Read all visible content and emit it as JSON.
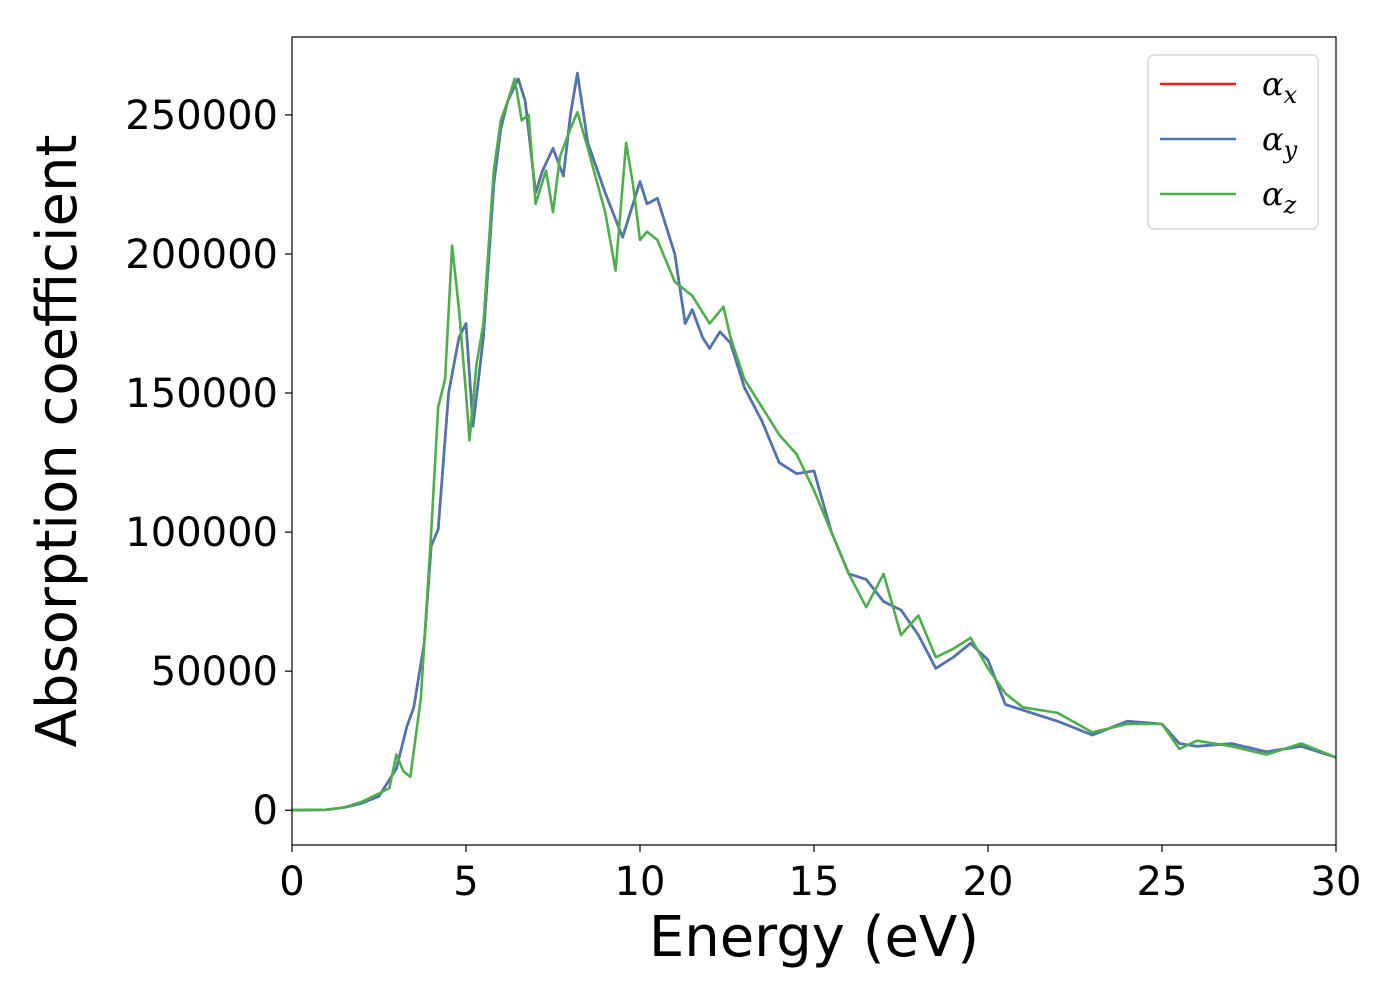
{
  "chart_data": {
    "type": "line",
    "title": "",
    "xlabel": "Energy (eV)",
    "ylabel": "Absorption coefficient",
    "xlim": [
      0,
      30
    ],
    "ylim": [
      -12500,
      278000
    ],
    "xticks": [
      0,
      5,
      10,
      15,
      20,
      25,
      30
    ],
    "yticks": [
      0,
      50000,
      100000,
      150000,
      200000,
      250000
    ],
    "grid": false,
    "legend_position": "top-right",
    "series": [
      {
        "name": "αx",
        "label_main": "α",
        "label_sub": "x",
        "color": "#e41a1c",
        "x": [
          0,
          1,
          1.5,
          2,
          2.5,
          3,
          3.3,
          3.5,
          3.8,
          4,
          4.2,
          4.5,
          4.8,
          5,
          5.2,
          5.5,
          5.8,
          6,
          6.2,
          6.5,
          6.7,
          7,
          7.2,
          7.5,
          7.8,
          8,
          8.2,
          8.5,
          9,
          9.5,
          10,
          10.2,
          10.5,
          11,
          11.3,
          11.5,
          11.8,
          12,
          12.3,
          12.6,
          13,
          13.5,
          14,
          14.5,
          15,
          15.5,
          16,
          16.5,
          17,
          17.5,
          18,
          18.5,
          19,
          19.5,
          20,
          20.5,
          21,
          22,
          23,
          24,
          25,
          25.5,
          26,
          27,
          28,
          29,
          30
        ],
        "values": [
          0,
          200,
          1000,
          2500,
          5000,
          15000,
          30000,
          37000,
          60000,
          95000,
          101000,
          150000,
          170000,
          175000,
          138000,
          170000,
          225000,
          245000,
          255000,
          263000,
          255000,
          222000,
          230000,
          238000,
          228000,
          250000,
          265000,
          240000,
          222000,
          206000,
          226000,
          218000,
          220000,
          200000,
          175000,
          180000,
          170000,
          166000,
          172000,
          168000,
          152000,
          140000,
          125000,
          121000,
          122000,
          100000,
          85000,
          83000,
          75000,
          72000,
          63000,
          51000,
          55000,
          60000,
          54000,
          38000,
          36000,
          32000,
          27000,
          32000,
          31000,
          24000,
          23000,
          24000,
          21000,
          23000,
          19000
        ]
      },
      {
        "name": "αy",
        "label_main": "α",
        "label_sub": "y",
        "color": "#4a76b6",
        "x": [
          0,
          1,
          1.5,
          2,
          2.5,
          3,
          3.3,
          3.5,
          3.8,
          4,
          4.2,
          4.5,
          4.8,
          5,
          5.2,
          5.5,
          5.8,
          6,
          6.2,
          6.5,
          6.7,
          7,
          7.2,
          7.5,
          7.8,
          8,
          8.2,
          8.5,
          9,
          9.5,
          10,
          10.2,
          10.5,
          11,
          11.3,
          11.5,
          11.8,
          12,
          12.3,
          12.6,
          13,
          13.5,
          14,
          14.5,
          15,
          15.5,
          16,
          16.5,
          17,
          17.5,
          18,
          18.5,
          19,
          19.5,
          20,
          20.5,
          21,
          22,
          23,
          24,
          25,
          25.5,
          26,
          27,
          28,
          29,
          30
        ],
        "values": [
          0,
          200,
          1000,
          2500,
          5000,
          15000,
          30000,
          37000,
          60000,
          95000,
          101000,
          150000,
          170000,
          175000,
          138000,
          170000,
          225000,
          245000,
          255000,
          263000,
          255000,
          222000,
          230000,
          238000,
          228000,
          250000,
          265000,
          240000,
          222000,
          206000,
          226000,
          218000,
          220000,
          200000,
          175000,
          180000,
          170000,
          166000,
          172000,
          168000,
          152000,
          140000,
          125000,
          121000,
          122000,
          100000,
          85000,
          83000,
          75000,
          72000,
          63000,
          51000,
          55000,
          60000,
          54000,
          38000,
          36000,
          32000,
          27000,
          32000,
          31000,
          24000,
          23000,
          24000,
          21000,
          23000,
          19000
        ]
      },
      {
        "name": "αz",
        "label_main": "α",
        "label_sub": "z",
        "color": "#4daf4a",
        "x": [
          0,
          1,
          1.5,
          2,
          2.5,
          2.8,
          3,
          3.2,
          3.4,
          3.7,
          4,
          4.2,
          4.4,
          4.6,
          4.8,
          5,
          5.1,
          5.3,
          5.5,
          5.8,
          6,
          6.2,
          6.4,
          6.6,
          6.8,
          7,
          7.3,
          7.5,
          7.7,
          8,
          8.2,
          8.5,
          9,
          9.3,
          9.6,
          9.8,
          10,
          10.2,
          10.5,
          11,
          11.5,
          12,
          12.4,
          12.6,
          13,
          13.5,
          14,
          14.5,
          15,
          15.5,
          16,
          16.5,
          17,
          17.5,
          18,
          18.5,
          19,
          19.5,
          20,
          20.5,
          21,
          22,
          23,
          24,
          25,
          25.5,
          26,
          27,
          28,
          29,
          30
        ],
        "values": [
          0,
          200,
          1000,
          3000,
          6000,
          8000,
          20000,
          14000,
          12000,
          40000,
          100000,
          145000,
          155000,
          203000,
          180000,
          150000,
          133000,
          160000,
          175000,
          230000,
          248000,
          255000,
          263000,
          248000,
          250000,
          218000,
          230000,
          215000,
          235000,
          245000,
          251000,
          238000,
          215000,
          194000,
          240000,
          225000,
          205000,
          208000,
          205000,
          190000,
          185000,
          175000,
          181000,
          170000,
          155000,
          145000,
          135000,
          128000,
          115000,
          100000,
          85000,
          73000,
          85000,
          63000,
          70000,
          55000,
          58000,
          62000,
          51000,
          42000,
          37000,
          35000,
          28000,
          31000,
          31000,
          22000,
          25000,
          23000,
          20000,
          24000,
          19000
        ]
      }
    ]
  }
}
